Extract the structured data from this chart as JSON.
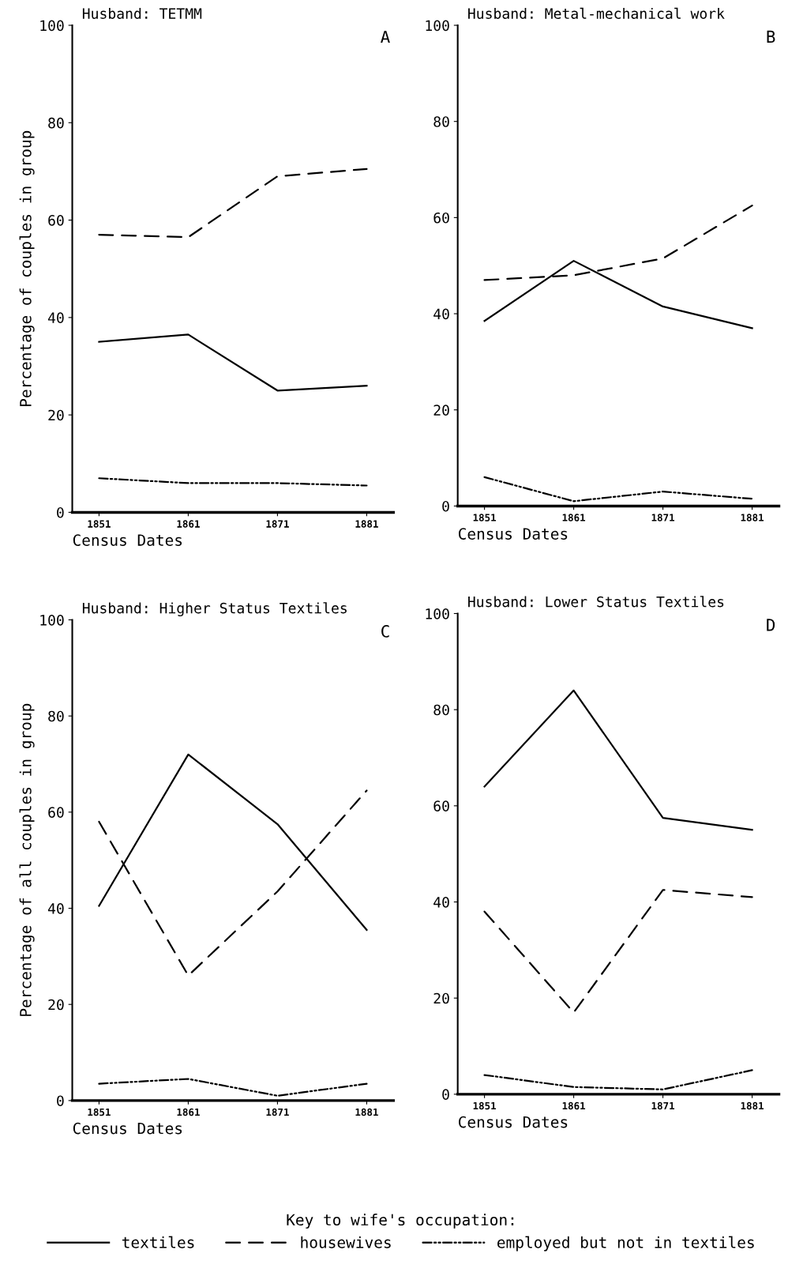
{
  "chart_data": [
    {
      "type": "line",
      "title": "Husband: TETMM",
      "xlabel": "Census Dates",
      "ylabel": "Percentage of couples in group",
      "categories": [
        "1851",
        "1861",
        "1871",
        "1881"
      ],
      "ylim": [
        0,
        100
      ],
      "yticks": [
        0,
        20,
        40,
        60,
        80,
        100
      ],
      "grid": false,
      "marker": "none",
      "annotations": [
        "A"
      ],
      "legend": "bottom",
      "legend_title": "Key to wife's occupation:",
      "series": [
        {
          "name": "textiles",
          "color": "#000000",
          "line_style": "solid",
          "values": [
            35,
            36.5,
            25,
            26
          ]
        },
        {
          "name": "housewives",
          "color": "#000000",
          "line_style": "dashed",
          "values": [
            57,
            56.5,
            69,
            70.5
          ]
        },
        {
          "name": "employed but not in textiles",
          "color": "#000000",
          "line_style": "dashdot",
          "values": [
            7,
            6,
            6,
            5.5
          ]
        }
      ]
    },
    {
      "type": "line",
      "title": "Husband: Metal-mechanical work",
      "xlabel": "Census Dates",
      "categories": [
        "1851",
        "1861",
        "1871",
        "1881"
      ],
      "ylim": [
        0,
        100
      ],
      "yticks": [
        0,
        20,
        40,
        60,
        80,
        100
      ],
      "grid": false,
      "marker": "none",
      "annotations": [
        "B"
      ],
      "series": [
        {
          "color": "#000000",
          "line_style": "solid",
          "values": [
            38.5,
            51,
            41.5,
            37
          ]
        },
        {
          "color": "#000000",
          "line_style": "dashed",
          "values": [
            47,
            48,
            51.5,
            62.5
          ]
        },
        {
          "color": "#000000",
          "line_style": "dashdot",
          "values": [
            6,
            1,
            3,
            1.5
          ]
        }
      ]
    },
    {
      "type": "line",
      "title": "Husband: Higher Status Textiles",
      "xlabel": "Census Dates",
      "ylabel": "Percentage of all couples in group",
      "categories": [
        "1851",
        "1861",
        "1871",
        "1881"
      ],
      "ylim": [
        0,
        100
      ],
      "yticks": [
        0,
        20,
        40,
        60,
        80,
        100
      ],
      "grid": false,
      "marker": "none",
      "annotations": [
        "C"
      ],
      "series": [
        {
          "color": "#000000",
          "line_style": "solid",
          "values": [
            40.5,
            72,
            57.5,
            35.5
          ]
        },
        {
          "color": "#000000",
          "line_style": "dashed",
          "values": [
            58,
            26,
            43.5,
            64.5
          ]
        },
        {
          "color": "#000000",
          "line_style": "dashdot",
          "values": [
            3.5,
            4.5,
            1,
            3.5
          ]
        }
      ]
    },
    {
      "type": "line",
      "title": "Husband: Lower Status Textiles",
      "xlabel": "Census Dates",
      "categories": [
        "1851",
        "1861",
        "1871",
        "1881"
      ],
      "ylim": [
        0,
        100
      ],
      "yticks": [
        0,
        20,
        40,
        60,
        80,
        100
      ],
      "grid": false,
      "marker": "none",
      "annotations": [
        "D"
      ],
      "series": [
        {
          "color": "#000000",
          "line_style": "solid",
          "values": [
            64,
            84,
            57.5,
            55
          ]
        },
        {
          "color": "#000000",
          "line_style": "dashed",
          "values": [
            38,
            17,
            42.5,
            41
          ]
        },
        {
          "color": "#000000",
          "line_style": "dashdot",
          "values": [
            4,
            1.5,
            1,
            5
          ]
        }
      ]
    }
  ]
}
